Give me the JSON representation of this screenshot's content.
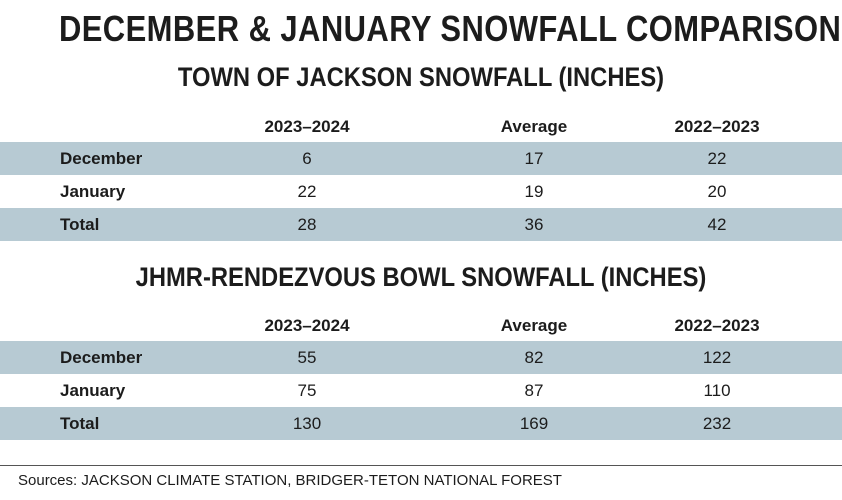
{
  "title": "DECEMBER & JANUARY SNOWFALL COMPARISON",
  "chart_data": [
    {
      "type": "table",
      "title": "TOWN OF JACKSON SNOWFALL (INCHES)",
      "columns": [
        "2023–2024",
        "Average",
        "2022–2023"
      ],
      "rows": [
        {
          "label": "December",
          "values": [
            6,
            17,
            22
          ]
        },
        {
          "label": "January",
          "values": [
            22,
            19,
            20
          ]
        },
        {
          "label": "Total",
          "values": [
            28,
            36,
            42
          ]
        }
      ]
    },
    {
      "type": "table",
      "title": "JHMR-RENDEZVOUS BOWL SNOWFALL (INCHES)",
      "columns": [
        "2023–2024",
        "Average",
        "2022–2023"
      ],
      "rows": [
        {
          "label": "December",
          "values": [
            55,
            82,
            122
          ]
        },
        {
          "label": "January",
          "values": [
            75,
            87,
            110
          ]
        },
        {
          "label": "Total",
          "values": [
            130,
            169,
            232
          ]
        }
      ]
    }
  ],
  "source": "Sources: JACKSON CLIMATE STATION,  BRIDGER-TETON NATIONAL FOREST",
  "colors": {
    "row_shade": "#b7cad3",
    "text": "#1c1c1c"
  }
}
